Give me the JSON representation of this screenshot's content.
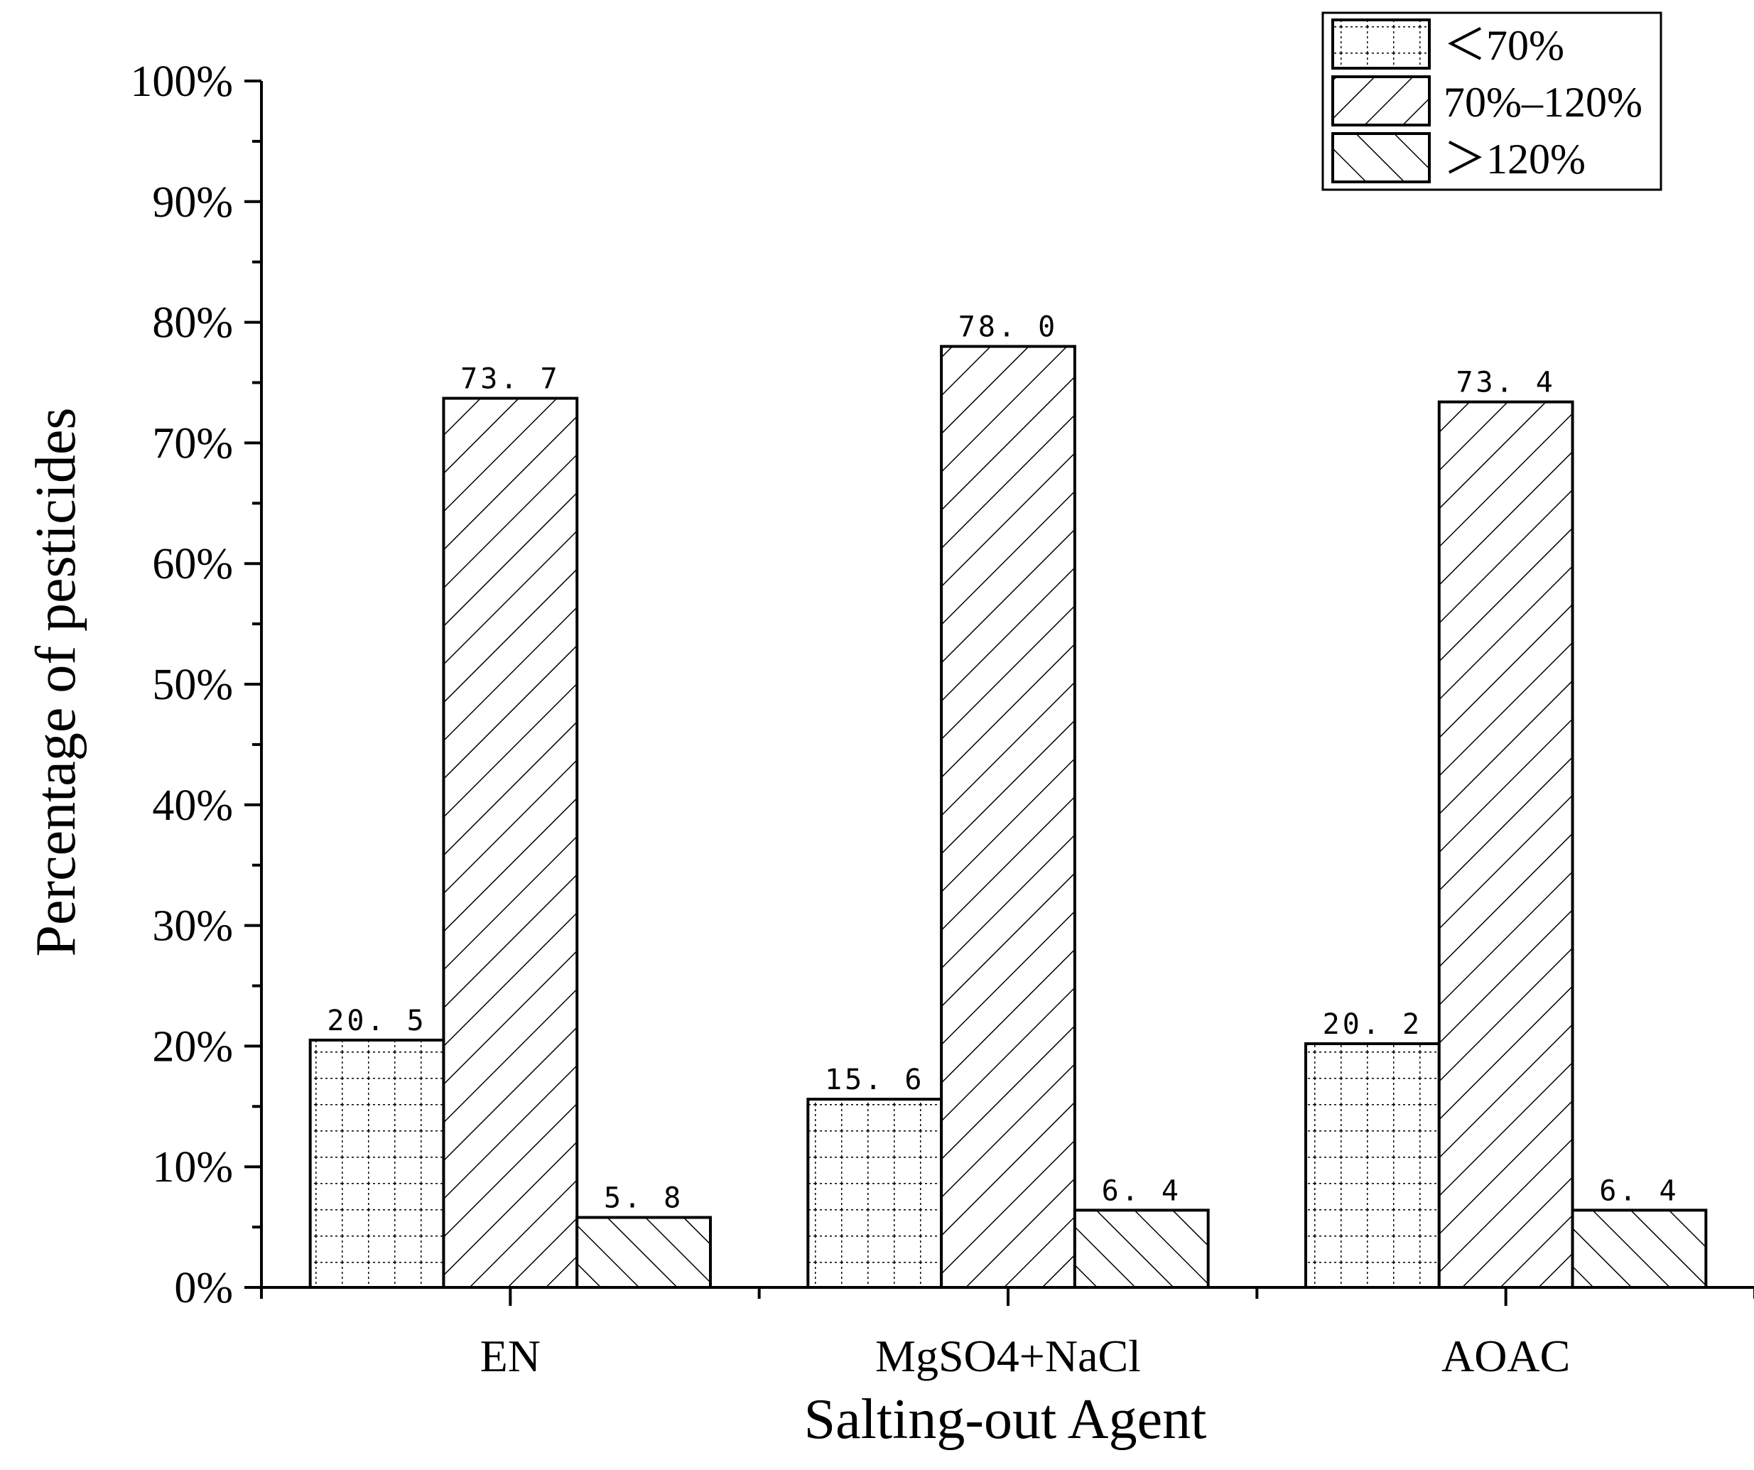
{
  "chart_data": {
    "type": "bar",
    "title": "",
    "xlabel": "Salting-out Agent",
    "ylabel": "Percentage of pesticides",
    "ylim": [
      0,
      100
    ],
    "yticks": [
      0,
      10,
      20,
      30,
      40,
      50,
      60,
      70,
      80,
      90,
      100
    ],
    "ytick_suffix": "%",
    "categories": [
      "EN",
      "MgSO4+NaCl",
      "AOAC"
    ],
    "series": [
      {
        "name": "＜70%",
        "pattern": "grid-dotted",
        "values": [
          20.5,
          15.6,
          20.2
        ],
        "labels": [
          "20. 5",
          "15. 6",
          "20. 2"
        ]
      },
      {
        "name": "70%–120%",
        "pattern": "forward-diagonal",
        "values": [
          73.7,
          78.0,
          73.4
        ],
        "labels": [
          "73. 7",
          "78. 0",
          "73. 4"
        ]
      },
      {
        "name": "＞120%",
        "pattern": "back-diagonal",
        "values": [
          5.8,
          6.4,
          6.4
        ],
        "labels": [
          "5. 8",
          "6. 4",
          "6. 4"
        ]
      }
    ],
    "legend_position": "top-right",
    "grid": false
  },
  "colors": {
    "stroke": "#000000",
    "background": "#ffffff"
  }
}
